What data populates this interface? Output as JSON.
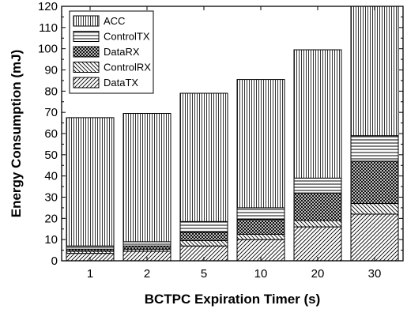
{
  "chart_data": {
    "type": "bar",
    "stacked": true,
    "categories": [
      "1",
      "2",
      "5",
      "10",
      "20",
      "30"
    ],
    "series": [
      {
        "name": "DataTX",
        "pattern": "diagonal-right",
        "values": [
          3.5,
          4.5,
          7.0,
          10.0,
          16.0,
          22.0
        ]
      },
      {
        "name": "ControlRX",
        "pattern": "diagonal-left",
        "values": [
          1.0,
          1.0,
          2.5,
          2.5,
          3.0,
          5.0
        ]
      },
      {
        "name": "DataRX",
        "pattern": "crosshatch",
        "values": [
          1.0,
          1.5,
          4.0,
          7.0,
          13.0,
          20.0
        ]
      },
      {
        "name": "ControlTX",
        "pattern": "horizontal",
        "values": [
          1.5,
          2.0,
          5.0,
          5.5,
          7.0,
          12.0
        ]
      },
      {
        "name": "ACC",
        "pattern": "vertical",
        "values": [
          60.5,
          60.5,
          60.5,
          60.5,
          60.5,
          61.0
        ]
      }
    ],
    "title": "",
    "xlabel": "BCTPC Expiration Timer (s)",
    "ylabel": "Energy Consumption (mJ)",
    "ylim": [
      0,
      120
    ],
    "yticks": [
      0,
      10,
      20,
      30,
      40,
      50,
      60,
      70,
      80,
      90,
      100,
      110,
      120
    ],
    "grid": false,
    "legend_position": "top-left",
    "legend_order": [
      "ACC",
      "ControlTX",
      "DataRX",
      "ControlRX",
      "DataTX"
    ]
  }
}
